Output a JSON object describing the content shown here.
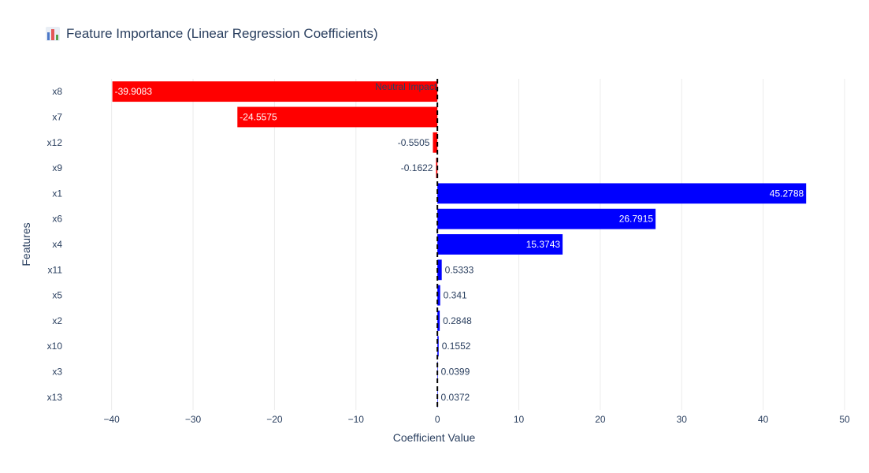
{
  "chart_data": {
    "type": "bar",
    "orientation": "horizontal",
    "title": "Feature Importance (Linear Regression Coefficients)",
    "title_icon": "bar-chart-icon",
    "xlabel": "Coefficient Value",
    "ylabel": "Features",
    "xlim": [
      -45,
      50
    ],
    "xticks": [
      -40,
      -30,
      -20,
      -10,
      0,
      10,
      20,
      30,
      40,
      50
    ],
    "xtick_labels": [
      "−40",
      "−30",
      "−20",
      "−10",
      "0",
      "10",
      "20",
      "30",
      "40",
      "50"
    ],
    "categories": [
      "x8",
      "x7",
      "x12",
      "x9",
      "x1",
      "x6",
      "x4",
      "x11",
      "x5",
      "x2",
      "x10",
      "x3",
      "x13"
    ],
    "values": [
      -39.9083,
      -24.5575,
      -0.5505,
      -0.1622,
      45.2788,
      26.7915,
      15.3743,
      0.5333,
      0.341,
      0.2848,
      0.1552,
      0.0399,
      0.0372
    ],
    "value_labels": [
      "-39.9083",
      "-24.5575",
      "-0.5505",
      "-0.1622",
      "45.2788",
      "26.7915",
      "15.3743",
      "0.5333",
      "0.341",
      "0.2848",
      "0.1552",
      "0.0399",
      "0.0372"
    ],
    "colors": {
      "negative": "#ff0000",
      "positive": "#0000ff",
      "grid": "#ebebeb",
      "text": "#2a3f5f",
      "reference_line": "#000000"
    },
    "reference_line": {
      "x": 0,
      "style": "dashed",
      "label": "Neutral Impact"
    },
    "grid": true,
    "legend": "none"
  }
}
